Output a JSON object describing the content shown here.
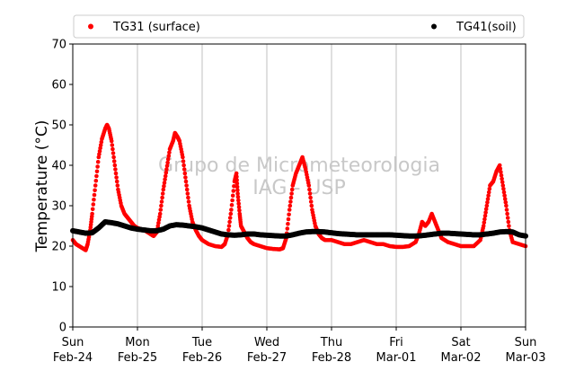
{
  "chart_data": {
    "type": "scatter",
    "ylabel": "Temperature (°C)",
    "xlabel": "",
    "ylim": [
      0,
      70
    ],
    "yticks": [
      0,
      10,
      20,
      30,
      40,
      50,
      60,
      70
    ],
    "xlim": [
      0,
      7
    ],
    "xticks": [
      {
        "x": 0,
        "day": "Sun",
        "date": "Feb-24"
      },
      {
        "x": 1,
        "day": "Mon",
        "date": "Feb-25"
      },
      {
        "x": 2,
        "day": "Tue",
        "date": "Feb-26"
      },
      {
        "x": 3,
        "day": "Wed",
        "date": "Feb-27"
      },
      {
        "x": 4,
        "day": "Thu",
        "date": "Feb-28"
      },
      {
        "x": 5,
        "day": "Fri",
        "date": "Mar-01"
      },
      {
        "x": 6,
        "day": "Sat",
        "date": "Mar-02"
      },
      {
        "x": 7,
        "day": "Sun",
        "date": "Mar-03"
      }
    ],
    "grid": "vertical",
    "legend_position": "top",
    "watermark": [
      "Grupo de Micrometeorologia",
      "IAG - USP"
    ],
    "series": [
      {
        "name": "TG31 (surface)",
        "color": "#ff0000",
        "points": [
          [
            0.0,
            21.5
          ],
          [
            0.05,
            20.5
          ],
          [
            0.1,
            20.0
          ],
          [
            0.15,
            19.5
          ],
          [
            0.2,
            19.0
          ],
          [
            0.23,
            20.5
          ],
          [
            0.27,
            24.0
          ],
          [
            0.3,
            28.0
          ],
          [
            0.35,
            35.0
          ],
          [
            0.4,
            42.0
          ],
          [
            0.45,
            46.5
          ],
          [
            0.5,
            49.0
          ],
          [
            0.53,
            50.0
          ],
          [
            0.56,
            49.0
          ],
          [
            0.6,
            46.0
          ],
          [
            0.65,
            40.0
          ],
          [
            0.7,
            34.0
          ],
          [
            0.75,
            30.0
          ],
          [
            0.8,
            28.0
          ],
          [
            0.85,
            27.0
          ],
          [
            0.9,
            26.0
          ],
          [
            0.95,
            25.0
          ],
          [
            1.0,
            24.5
          ],
          [
            1.1,
            24.0
          ],
          [
            1.2,
            23.0
          ],
          [
            1.25,
            22.5
          ],
          [
            1.3,
            23.5
          ],
          [
            1.35,
            28.0
          ],
          [
            1.4,
            34.0
          ],
          [
            1.45,
            39.0
          ],
          [
            1.5,
            44.0
          ],
          [
            1.55,
            46.0
          ],
          [
            1.58,
            48.0
          ],
          [
            1.62,
            47.0
          ],
          [
            1.65,
            46.0
          ],
          [
            1.7,
            42.0
          ],
          [
            1.75,
            36.0
          ],
          [
            1.8,
            30.0
          ],
          [
            1.85,
            26.0
          ],
          [
            1.9,
            24.0
          ],
          [
            1.95,
            22.5
          ],
          [
            2.0,
            21.5
          ],
          [
            2.1,
            20.5
          ],
          [
            2.2,
            20.0
          ],
          [
            2.3,
            19.8
          ],
          [
            2.35,
            20.5
          ],
          [
            2.4,
            23.0
          ],
          [
            2.45,
            29.0
          ],
          [
            2.5,
            36.0
          ],
          [
            2.53,
            38.0
          ],
          [
            2.55,
            33.0
          ],
          [
            2.58,
            28.0
          ],
          [
            2.6,
            25.0
          ],
          [
            2.65,
            23.5
          ],
          [
            2.7,
            22.0
          ],
          [
            2.75,
            21.0
          ],
          [
            2.8,
            20.5
          ],
          [
            2.9,
            20.0
          ],
          [
            3.0,
            19.5
          ],
          [
            3.1,
            19.3
          ],
          [
            3.2,
            19.2
          ],
          [
            3.25,
            19.5
          ],
          [
            3.3,
            22.0
          ],
          [
            3.35,
            29.0
          ],
          [
            3.4,
            35.0
          ],
          [
            3.45,
            38.0
          ],
          [
            3.5,
            40.0
          ],
          [
            3.55,
            42.0
          ],
          [
            3.6,
            39.0
          ],
          [
            3.65,
            35.0
          ],
          [
            3.7,
            29.0
          ],
          [
            3.75,
            25.0
          ],
          [
            3.8,
            23.0
          ],
          [
            3.85,
            22.0
          ],
          [
            3.9,
            21.5
          ],
          [
            4.0,
            21.5
          ],
          [
            4.1,
            21.0
          ],
          [
            4.2,
            20.5
          ],
          [
            4.3,
            20.5
          ],
          [
            4.4,
            21.0
          ],
          [
            4.5,
            21.5
          ],
          [
            4.6,
            21.0
          ],
          [
            4.7,
            20.5
          ],
          [
            4.8,
            20.5
          ],
          [
            4.9,
            20.0
          ],
          [
            5.0,
            19.8
          ],
          [
            5.1,
            19.8
          ],
          [
            5.2,
            20.0
          ],
          [
            5.3,
            21.0
          ],
          [
            5.35,
            23.0
          ],
          [
            5.4,
            26.0
          ],
          [
            5.45,
            25.0
          ],
          [
            5.5,
            26.0
          ],
          [
            5.55,
            28.0
          ],
          [
            5.6,
            26.0
          ],
          [
            5.65,
            24.0
          ],
          [
            5.7,
            22.0
          ],
          [
            5.8,
            21.0
          ],
          [
            5.9,
            20.5
          ],
          [
            6.0,
            20.0
          ],
          [
            6.1,
            20.0
          ],
          [
            6.2,
            20.0
          ],
          [
            6.3,
            21.5
          ],
          [
            6.35,
            25.0
          ],
          [
            6.4,
            30.0
          ],
          [
            6.45,
            35.0
          ],
          [
            6.5,
            36.0
          ],
          [
            6.55,
            38.5
          ],
          [
            6.6,
            40.0
          ],
          [
            6.65,
            35.0
          ],
          [
            6.7,
            30.0
          ],
          [
            6.75,
            24.0
          ],
          [
            6.8,
            21.0
          ],
          [
            6.9,
            20.5
          ],
          [
            7.0,
            20.0
          ]
        ]
      },
      {
        "name": "TG41(soil)",
        "color": "#000000",
        "points": [
          [
            0.0,
            23.8
          ],
          [
            0.1,
            23.5
          ],
          [
            0.2,
            23.2
          ],
          [
            0.3,
            23.3
          ],
          [
            0.4,
            24.5
          ],
          [
            0.5,
            26.0
          ],
          [
            0.6,
            25.8
          ],
          [
            0.7,
            25.5
          ],
          [
            0.8,
            25.0
          ],
          [
            0.9,
            24.5
          ],
          [
            1.0,
            24.2
          ],
          [
            1.1,
            24.0
          ],
          [
            1.2,
            23.8
          ],
          [
            1.3,
            23.8
          ],
          [
            1.4,
            24.2
          ],
          [
            1.5,
            25.0
          ],
          [
            1.6,
            25.3
          ],
          [
            1.7,
            25.2
          ],
          [
            1.8,
            25.0
          ],
          [
            1.9,
            24.8
          ],
          [
            2.0,
            24.5
          ],
          [
            2.1,
            24.0
          ],
          [
            2.2,
            23.5
          ],
          [
            2.3,
            23.0
          ],
          [
            2.4,
            22.8
          ],
          [
            2.5,
            22.7
          ],
          [
            2.6,
            22.8
          ],
          [
            2.7,
            23.0
          ],
          [
            2.8,
            23.0
          ],
          [
            2.9,
            22.8
          ],
          [
            3.0,
            22.7
          ],
          [
            3.1,
            22.6
          ],
          [
            3.2,
            22.5
          ],
          [
            3.3,
            22.5
          ],
          [
            3.4,
            22.8
          ],
          [
            3.5,
            23.2
          ],
          [
            3.6,
            23.5
          ],
          [
            3.7,
            23.6
          ],
          [
            3.8,
            23.6
          ],
          [
            3.9,
            23.5
          ],
          [
            4.0,
            23.3
          ],
          [
            4.1,
            23.1
          ],
          [
            4.2,
            23.0
          ],
          [
            4.3,
            22.9
          ],
          [
            4.4,
            22.8
          ],
          [
            4.5,
            22.8
          ],
          [
            4.6,
            22.8
          ],
          [
            4.7,
            22.8
          ],
          [
            4.8,
            22.8
          ],
          [
            4.9,
            22.8
          ],
          [
            5.0,
            22.7
          ],
          [
            5.1,
            22.6
          ],
          [
            5.2,
            22.5
          ],
          [
            5.3,
            22.5
          ],
          [
            5.4,
            22.6
          ],
          [
            5.5,
            22.8
          ],
          [
            5.6,
            23.0
          ],
          [
            5.7,
            23.2
          ],
          [
            5.8,
            23.2
          ],
          [
            5.9,
            23.1
          ],
          [
            6.0,
            23.0
          ],
          [
            6.1,
            22.9
          ],
          [
            6.2,
            22.8
          ],
          [
            6.3,
            22.8
          ],
          [
            6.4,
            23.0
          ],
          [
            6.5,
            23.2
          ],
          [
            6.6,
            23.5
          ],
          [
            6.7,
            23.6
          ],
          [
            6.8,
            23.5
          ],
          [
            6.9,
            22.8
          ],
          [
            7.0,
            22.5
          ]
        ]
      }
    ]
  }
}
